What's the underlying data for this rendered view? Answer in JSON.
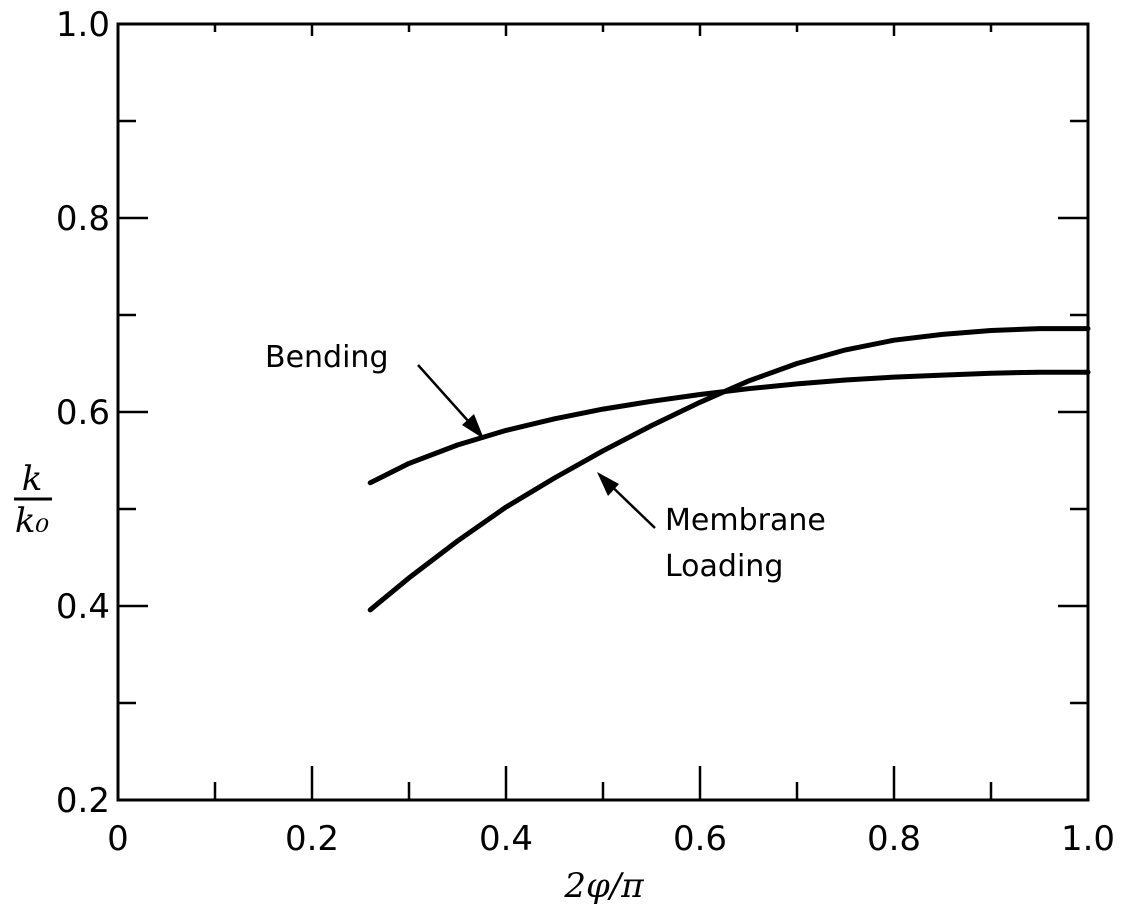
{
  "chart_data": {
    "type": "line",
    "xlabel": "2φ/π",
    "ylabel_numerator": "k",
    "ylabel_denominator": "k₀",
    "xlim": [
      0,
      1.0
    ],
    "ylim": [
      0.2,
      1.0
    ],
    "x_tick_labels": [
      "0",
      "0.2",
      "0.4",
      "0.6",
      "0.8",
      "1.0"
    ],
    "y_tick_labels": [
      "0.2",
      "0.4",
      "0.6",
      "0.8",
      "1.0"
    ],
    "grid": false,
    "series": [
      {
        "name": "Bending",
        "x": [
          0.26,
          0.3,
          0.35,
          0.4,
          0.45,
          0.5,
          0.55,
          0.6,
          0.65,
          0.7,
          0.75,
          0.8,
          0.85,
          0.9,
          0.95,
          1.0
        ],
        "y": [
          0.527,
          0.547,
          0.566,
          0.581,
          0.593,
          0.603,
          0.611,
          0.618,
          0.624,
          0.629,
          0.633,
          0.636,
          0.638,
          0.64,
          0.641,
          0.641
        ]
      },
      {
        "name": "Membrane Loading",
        "x": [
          0.26,
          0.3,
          0.35,
          0.4,
          0.45,
          0.5,
          0.55,
          0.6,
          0.65,
          0.7,
          0.75,
          0.8,
          0.85,
          0.9,
          0.95,
          1.0
        ],
        "y": [
          0.396,
          0.429,
          0.467,
          0.502,
          0.532,
          0.56,
          0.586,
          0.61,
          0.632,
          0.65,
          0.664,
          0.674,
          0.68,
          0.684,
          0.686,
          0.686
        ]
      }
    ],
    "annotations": [
      {
        "text": "Bending",
        "points_to": [
          0.375,
          0.575
        ]
      },
      {
        "text_line1": "Membrane",
        "text_line2": "Loading",
        "points_to": [
          0.49,
          0.54
        ]
      }
    ]
  }
}
